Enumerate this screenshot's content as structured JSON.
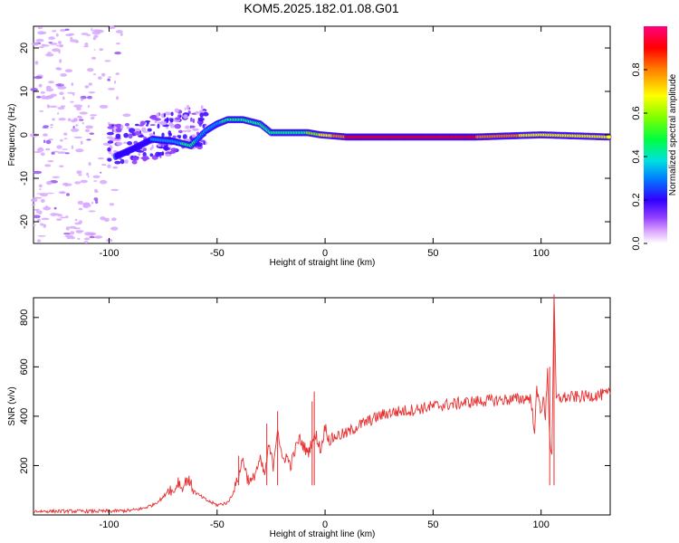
{
  "title": "KOM5.2025.182.01.08.G01",
  "colors": {
    "snr_line": "#e83030",
    "frame": "#000000",
    "colormap": [
      "#ffffff",
      "#c080ff",
      "#3000ff",
      "#00a0ff",
      "#00ff80",
      "#80ff00",
      "#ffff00",
      "#ff8000",
      "#ff0000",
      "#ff0080"
    ]
  },
  "chart_data": [
    {
      "type": "heatmap",
      "xlabel": "Height of straight line (km)",
      "ylabel": "Frequency (Hz)",
      "xlim": [
        -135,
        132
      ],
      "ylim": [
        -25,
        25
      ],
      "xticks": [
        -100,
        -50,
        0,
        50,
        100
      ],
      "yticks": [
        20,
        10,
        0,
        -10,
        -20
      ],
      "colorbar": {
        "label": "Normalized spectral amplitude",
        "range": [
          0,
          1
        ],
        "ticks": [
          "0.0",
          "0.2",
          "0.4",
          "0.6",
          "0.8"
        ]
      },
      "ridge": [
        {
          "x": -97,
          "f": -5,
          "amp": 0.35
        },
        {
          "x": -88,
          "f": -3,
          "amp": 0.3
        },
        {
          "x": -80,
          "f": -1,
          "amp": 0.35
        },
        {
          "x": -70,
          "f": -1.5,
          "amp": 0.4
        },
        {
          "x": -62,
          "f": -2.5,
          "amp": 0.5
        },
        {
          "x": -55,
          "f": 1,
          "amp": 0.35
        },
        {
          "x": -50,
          "f": 2.5,
          "amp": 0.4
        },
        {
          "x": -45,
          "f": 3.5,
          "amp": 0.5
        },
        {
          "x": -38,
          "f": 3.5,
          "amp": 0.5
        },
        {
          "x": -30,
          "f": 2.5,
          "amp": 0.45
        },
        {
          "x": -25,
          "f": 0.5,
          "amp": 0.5
        },
        {
          "x": -15,
          "f": 0.5,
          "amp": 0.55
        },
        {
          "x": -8,
          "f": 0.5,
          "amp": 0.6
        },
        {
          "x": -2,
          "f": 0,
          "amp": 0.7
        },
        {
          "x": 10,
          "f": -0.5,
          "amp": 0.9
        },
        {
          "x": 40,
          "f": -0.5,
          "amp": 0.95
        },
        {
          "x": 70,
          "f": -0.5,
          "amp": 0.9
        },
        {
          "x": 100,
          "f": 0,
          "amp": 0.75
        },
        {
          "x": 132,
          "f": -0.5,
          "amp": 0.7
        }
      ]
    },
    {
      "type": "line",
      "xlabel": "Height of straight line (km)",
      "ylabel": "SNR (v/v)",
      "xlim": [
        -135,
        132
      ],
      "ylim": [
        0,
        880
      ],
      "xticks": [
        -100,
        -50,
        0,
        50,
        100
      ],
      "yticks": [
        200,
        400,
        600,
        800
      ],
      "series": [
        {
          "points": [
            [
              -135,
              15
            ],
            [
              -120,
              15
            ],
            [
              -100,
              15
            ],
            [
              -90,
              18
            ],
            [
              -85,
              25
            ],
            [
              -80,
              40
            ],
            [
              -75,
              70
            ],
            [
              -72,
              110
            ],
            [
              -70,
              90
            ],
            [
              -68,
              140
            ],
            [
              -66,
              100
            ],
            [
              -64,
              150
            ],
            [
              -62,
              120
            ],
            [
              -60,
              90
            ],
            [
              -55,
              60
            ],
            [
              -50,
              40
            ],
            [
              -45,
              50
            ],
            [
              -42,
              100
            ],
            [
              -40,
              160
            ],
            [
              -38,
              230
            ],
            [
              -36,
              150
            ],
            [
              -34,
              130
            ],
            [
              -32,
              180
            ],
            [
              -30,
              220
            ],
            [
              -28,
              160
            ],
            [
              -26,
              280
            ],
            [
              -24,
              200
            ],
            [
              -22,
              360
            ],
            [
              -20,
              220
            ],
            [
              -18,
              240
            ],
            [
              -16,
              200
            ],
            [
              -14,
              260
            ],
            [
              -12,
              310
            ],
            [
              -10,
              280
            ],
            [
              -8,
              250
            ],
            [
              -6,
              300
            ],
            [
              -4,
              320
            ],
            [
              -2,
              260
            ],
            [
              0,
              360
            ],
            [
              2,
              300
            ],
            [
              5,
              320
            ],
            [
              10,
              330
            ],
            [
              15,
              360
            ],
            [
              20,
              380
            ],
            [
              25,
              400
            ],
            [
              30,
              415
            ],
            [
              40,
              425
            ],
            [
              50,
              440
            ],
            [
              60,
              450
            ],
            [
              70,
              460
            ],
            [
              80,
              465
            ],
            [
              90,
              470
            ],
            [
              95,
              475
            ],
            [
              97,
              350
            ],
            [
              98,
              500
            ],
            [
              100,
              420
            ],
            [
              101,
              480
            ],
            [
              102,
              380
            ],
            [
              103,
              600
            ],
            [
              104,
              300
            ],
            [
              105,
              250
            ],
            [
              106,
              870
            ],
            [
              107,
              470
            ],
            [
              110,
              475
            ],
            [
              120,
              480
            ],
            [
              132,
              490
            ]
          ]
        }
      ],
      "spikes": [
        {
          "x": -40,
          "y": 240
        },
        {
          "x": -27,
          "y": 370
        },
        {
          "x": -22,
          "y": 420
        },
        {
          "x": -6,
          "y": 460
        },
        {
          "x": -5,
          "y": 500
        },
        {
          "x": 104,
          "y": 600
        },
        {
          "x": 106,
          "y": 880
        }
      ]
    }
  ]
}
